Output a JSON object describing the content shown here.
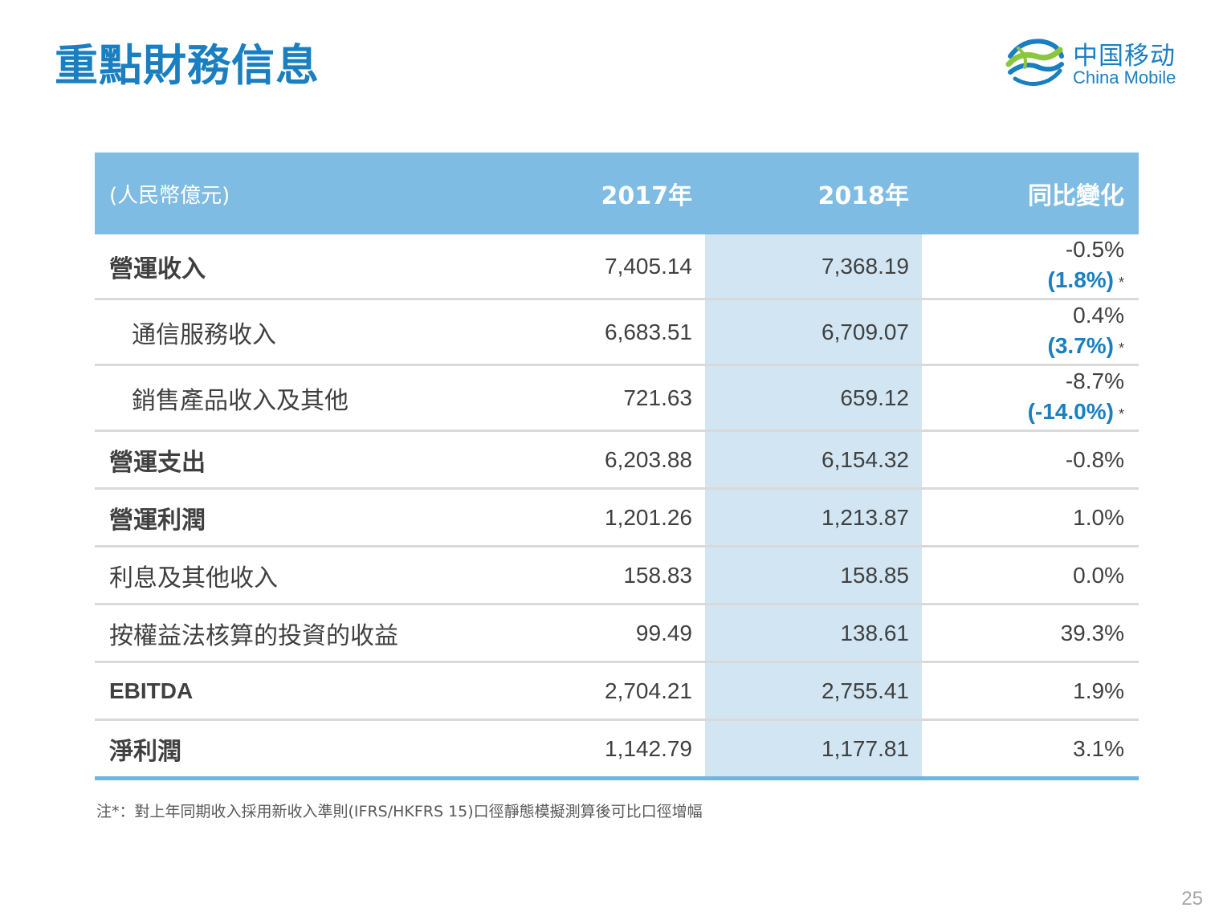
{
  "title": "重點財務信息",
  "logo": {
    "cn": "中国移动",
    "en": "China Mobile"
  },
  "colors": {
    "accent": "#1a7fc1",
    "header_bg": "#7ebce3",
    "highlight_col": "#d1e6f2"
  },
  "table": {
    "header": {
      "unit": "(人民幣億元)",
      "col_2017": "2017年",
      "col_2018": "2018年",
      "col_yoy": "同比變化"
    },
    "rows": [
      {
        "label": "營運收入",
        "v2017": "7,405.14",
        "v2018": "7,368.19",
        "yoy": "-0.5%",
        "yoy_adj": "(1.8%)",
        "star": "*"
      },
      {
        "label": "通信服務收入",
        "v2017": "6,683.51",
        "v2018": "6,709.07",
        "yoy": "0.4%",
        "yoy_adj": "(3.7%)",
        "star": "*"
      },
      {
        "label": "銷售產品收入及其他",
        "v2017": "721.63",
        "v2018": "659.12",
        "yoy": "-8.7%",
        "yoy_adj": "(-14.0%)",
        "star": "*"
      },
      {
        "label": "營運支出",
        "v2017": "6,203.88",
        "v2018": "6,154.32",
        "yoy": "-0.8%"
      },
      {
        "label": "營運利潤",
        "v2017": "1,201.26",
        "v2018": "1,213.87",
        "yoy": "1.0%"
      },
      {
        "label": "利息及其他收入",
        "v2017": "158.83",
        "v2018": "158.85",
        "yoy": "0.0%"
      },
      {
        "label": "按權益法核算的投資的收益",
        "v2017": "99.49",
        "v2018": "138.61",
        "yoy": "39.3%"
      },
      {
        "label": "EBITDA",
        "v2017": "2,704.21",
        "v2018": "2,755.41",
        "yoy": "1.9%"
      },
      {
        "label": "淨利潤",
        "v2017": "1,142.79",
        "v2018": "1,177.81",
        "yoy": "3.1%"
      }
    ]
  },
  "note": "注*：對上年同期收入採用新收入準則(IFRS/HKFRS 15)口徑靜態模擬測算後可比口徑增幅",
  "page_number": "25"
}
